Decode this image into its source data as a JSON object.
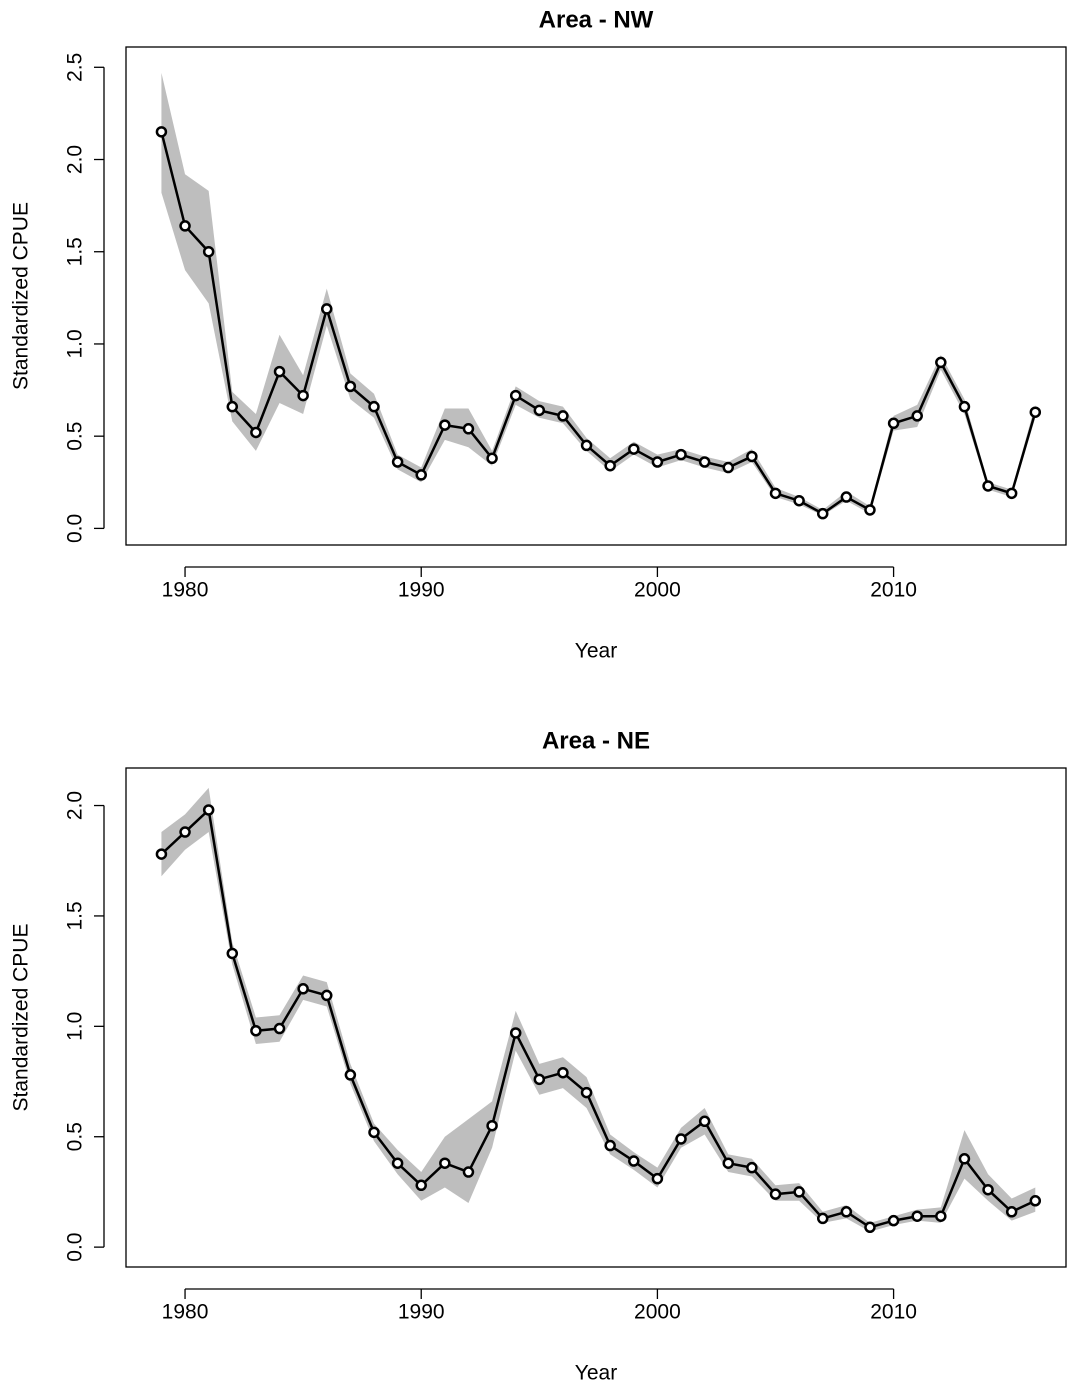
{
  "chart_data": [
    {
      "type": "line",
      "title": "Area - NW",
      "xlabel": "Year",
      "ylabel": "Standardized CPUE",
      "x": [
        1979,
        1980,
        1981,
        1982,
        1983,
        1984,
        1985,
        1986,
        1987,
        1988,
        1989,
        1990,
        1991,
        1992,
        1993,
        1994,
        1995,
        1996,
        1997,
        1998,
        1999,
        2000,
        2001,
        2002,
        2003,
        2004,
        2005,
        2006,
        2007,
        2008,
        2009,
        2010,
        2011,
        2012,
        2013,
        2014,
        2015,
        2016
      ],
      "values": [
        2.15,
        1.64,
        1.5,
        0.66,
        0.52,
        0.85,
        0.72,
        1.19,
        0.77,
        0.66,
        0.36,
        0.29,
        0.56,
        0.54,
        0.38,
        0.72,
        0.64,
        0.61,
        0.45,
        0.34,
        0.43,
        0.36,
        0.4,
        0.36,
        0.33,
        0.39,
        0.19,
        0.15,
        0.08,
        0.17,
        0.1,
        0.57,
        0.61,
        0.9,
        0.66,
        0.23,
        0.19,
        0.63
      ],
      "lower": [
        1.82,
        1.4,
        1.22,
        0.58,
        0.42,
        0.68,
        0.62,
        1.1,
        0.7,
        0.6,
        0.32,
        0.25,
        0.48,
        0.44,
        0.34,
        0.67,
        0.6,
        0.57,
        0.42,
        0.31,
        0.4,
        0.33,
        0.37,
        0.33,
        0.3,
        0.36,
        0.17,
        0.13,
        0.07,
        0.15,
        0.08,
        0.53,
        0.55,
        0.86,
        0.62,
        0.21,
        0.17,
        0.6
      ],
      "upper": [
        2.47,
        1.92,
        1.83,
        0.74,
        0.62,
        1.05,
        0.83,
        1.3,
        0.84,
        0.73,
        0.4,
        0.33,
        0.65,
        0.65,
        0.42,
        0.77,
        0.69,
        0.66,
        0.49,
        0.38,
        0.47,
        0.4,
        0.43,
        0.39,
        0.36,
        0.43,
        0.22,
        0.17,
        0.1,
        0.2,
        0.12,
        0.61,
        0.67,
        0.94,
        0.7,
        0.25,
        0.21,
        0.67
      ],
      "color": "#000000",
      "band_color": "#bebebe",
      "xlim": [
        1977.5,
        2017.3
      ],
      "xticks": [
        1980,
        1990,
        2000,
        2010
      ],
      "ylim": [
        -0.09,
        2.61
      ],
      "yticks": [
        {
          "value": 0,
          "label": "0.0"
        },
        0.5,
        {
          "value": 1,
          "label": "1.0"
        },
        1.5,
        {
          "value": 2,
          "label": "2.0"
        },
        2.5
      ]
    },
    {
      "type": "line",
      "title": "Area - NE",
      "xlabel": "Year",
      "ylabel": "Standardized CPUE",
      "x": [
        1979,
        1980,
        1981,
        1982,
        1983,
        1984,
        1985,
        1986,
        1987,
        1988,
        1989,
        1990,
        1991,
        1992,
        1993,
        1994,
        1995,
        1996,
        1997,
        1998,
        1999,
        2000,
        2001,
        2002,
        2003,
        2004,
        2005,
        2006,
        2007,
        2008,
        2009,
        2010,
        2011,
        2012,
        2013,
        2014,
        2015,
        2016
      ],
      "values": [
        1.78,
        1.88,
        1.98,
        1.33,
        0.98,
        0.99,
        1.17,
        1.14,
        0.78,
        0.52,
        0.38,
        0.28,
        0.38,
        0.34,
        0.55,
        0.97,
        0.76,
        0.79,
        0.7,
        0.46,
        0.39,
        0.31,
        0.49,
        0.57,
        0.38,
        0.36,
        0.24,
        0.25,
        0.13,
        0.16,
        0.09,
        0.12,
        0.14,
        0.14,
        0.4,
        0.26,
        0.16,
        0.21
      ],
      "lower": [
        1.68,
        1.8,
        1.88,
        1.28,
        0.92,
        0.93,
        1.12,
        1.09,
        0.74,
        0.48,
        0.33,
        0.21,
        0.27,
        0.2,
        0.45,
        0.89,
        0.69,
        0.72,
        0.63,
        0.42,
        0.35,
        0.27,
        0.45,
        0.51,
        0.34,
        0.32,
        0.21,
        0.21,
        0.11,
        0.13,
        0.07,
        0.1,
        0.12,
        0.11,
        0.31,
        0.21,
        0.12,
        0.16
      ],
      "upper": [
        1.88,
        1.96,
        2.08,
        1.38,
        1.04,
        1.05,
        1.23,
        1.2,
        0.83,
        0.56,
        0.44,
        0.34,
        0.5,
        0.58,
        0.66,
        1.07,
        0.83,
        0.86,
        0.77,
        0.51,
        0.43,
        0.36,
        0.54,
        0.63,
        0.42,
        0.4,
        0.28,
        0.29,
        0.16,
        0.19,
        0.11,
        0.14,
        0.17,
        0.18,
        0.53,
        0.33,
        0.22,
        0.27
      ],
      "color": "#000000",
      "band_color": "#bebebe",
      "xlim": [
        1977.5,
        2017.3
      ],
      "xticks": [
        1980,
        1990,
        2000,
        2010
      ],
      "ylim": [
        -0.09,
        2.17
      ],
      "yticks": [
        {
          "value": 0,
          "label": "0.0"
        },
        0.5,
        {
          "value": 1,
          "label": "1.0"
        },
        1.5,
        {
          "value": 2,
          "label": "2.0"
        }
      ]
    }
  ]
}
